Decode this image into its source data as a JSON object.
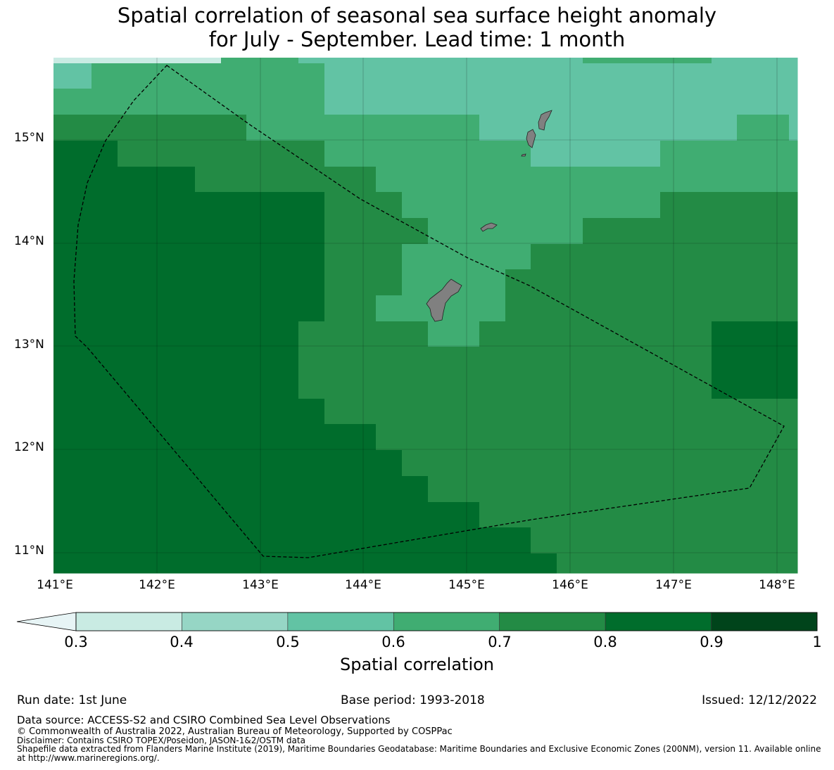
{
  "title": {
    "line1": "Spatial correlation of seasonal sea surface height anomaly",
    "line2": "for July - September. Lead time: 1 month"
  },
  "map": {
    "lat_labels": [
      "15°N",
      "14°N",
      "13°N",
      "12°N",
      "11°N"
    ],
    "lon_labels": [
      "141°E",
      "142°E",
      "143°E",
      "144°E",
      "145°E",
      "146°E",
      "147°E",
      "148°E"
    ],
    "land_color": "#808080",
    "boundary_style": "dashed black"
  },
  "colorbar": {
    "title": "Spatial correlation",
    "tick_labels": [
      "0.3",
      "0.4",
      "0.5",
      "0.6",
      "0.7",
      "0.8",
      "0.9",
      "1"
    ],
    "extend": "min",
    "under_color": "#e7f4f5",
    "colors": [
      "#c9ebe3",
      "#96d6c5",
      "#62c3a4",
      "#40ad72",
      "#238b45",
      "#006d2c",
      "#00441b"
    ]
  },
  "footer": {
    "run_date": "Run date: 1st June",
    "base_period": "Base period: 1993-2018",
    "issued": "Issued: 12/12/2022",
    "data_source": "Data source: ACCESS-S2 and CSIRO Combined Sea Level Observations",
    "copyright": "© Commonwealth of Australia 2022, Australian Bureau of Meteorology, Supported by COSPPac",
    "disclaimer": "Disclaimer: Contains CSIRO TOPEX/Poseidon, JASON-1&2/OSTM data",
    "shapefile": "Shapefile data extracted from Flanders Marine Institute (2019), Maritime Boundaries Geodatabase: Maritime Boundaries and Exclusive Economic Zones (200NM), version 11. Available online at http://www.marineregions.org/."
  }
}
